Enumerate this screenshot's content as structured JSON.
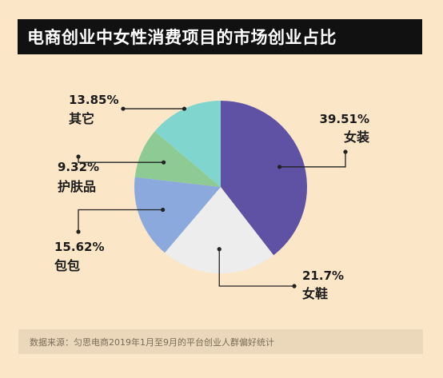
{
  "title": "电商创业中女性消费项目的市场创业占比",
  "source": "数据来源：匀思电商2019年1月至9月的平台创业人群偏好统计",
  "colors": {
    "background": "#fbe6c8",
    "title_bg": "#111111",
    "title_text": "#ffffff",
    "source_bg": "#ebd8ba",
    "source_text": "#7a6a59",
    "leader": "#222222"
  },
  "chart_data": {
    "type": "pie",
    "slices": [
      {
        "label": "女装",
        "value": 39.51,
        "value_label": "39.51%",
        "color": "#5f51a3"
      },
      {
        "label": "女鞋",
        "value": 21.7,
        "value_label": "21.7%",
        "color": "#ededed"
      },
      {
        "label": "包包",
        "value": 15.62,
        "value_label": "15.62%",
        "color": "#8ba9dd"
      },
      {
        "label": "护肤品",
        "value": 9.32,
        "value_label": "9.32%",
        "color": "#8ecb94"
      },
      {
        "label": "其它",
        "value": 13.85,
        "value_label": "13.85%",
        "color": "#80d6cf"
      }
    ]
  }
}
